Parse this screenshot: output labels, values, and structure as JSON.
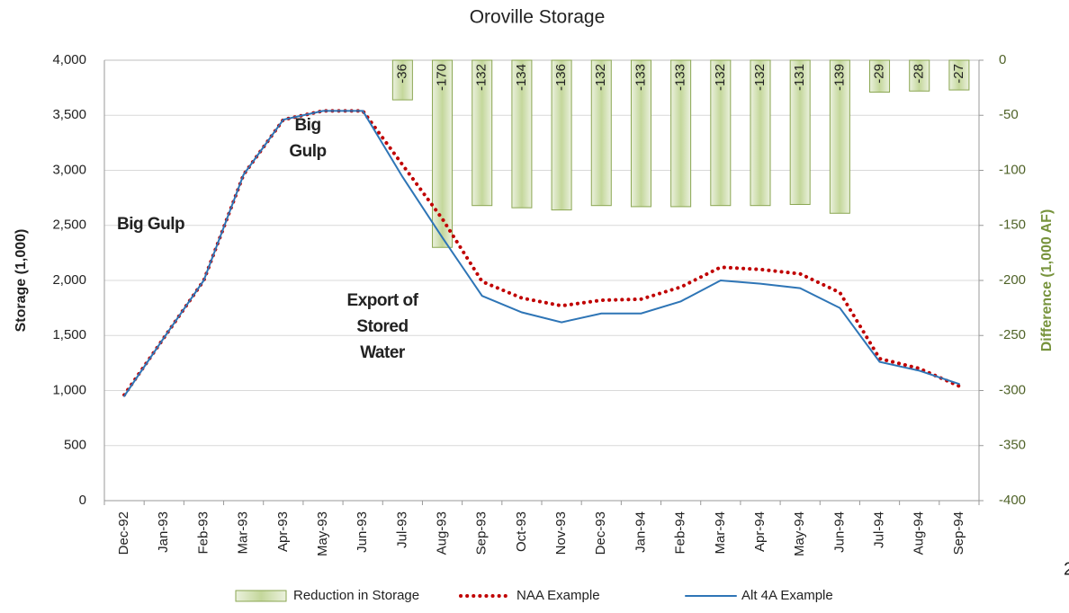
{
  "chart_data": {
    "type": "combo",
    "title": "Oroville Storage",
    "y_label": "Storage (1,000)",
    "y2_label": "Difference (1,000 AF)",
    "categories": [
      "Dec-92",
      "Jan-93",
      "Feb-93",
      "Mar-93",
      "Apr-93",
      "May-93",
      "Jun-93",
      "Jul-93",
      "Aug-93",
      "Sep-93",
      "Oct-93",
      "Nov-93",
      "Dec-93",
      "Jan-94",
      "Feb-94",
      "Mar-94",
      "Apr-94",
      "May-94",
      "Jun-94",
      "Jul-94",
      "Aug-94",
      "Sep-94"
    ],
    "series": [
      {
        "name": "Reduction in Storage",
        "type": "bar",
        "axis": "y2",
        "color": "#c4d79b",
        "values": [
          null,
          null,
          null,
          null,
          null,
          null,
          null,
          -36,
          -170,
          -132,
          -134,
          -136,
          -132,
          -133,
          -133,
          -132,
          -132,
          -131,
          -139,
          -29,
          -28,
          -27
        ]
      },
      {
        "name": "NAA Example",
        "type": "line",
        "color": "#c00000",
        "dotted": true,
        "values": [
          960,
          1480,
          2000,
          2960,
          3460,
          3540,
          3540,
          3050,
          2560,
          1990,
          1840,
          1770,
          1820,
          1830,
          1940,
          2120,
          2100,
          2060,
          1890,
          1290,
          1200,
          1040
        ]
      },
      {
        "name": "Alt 4A Example",
        "type": "line",
        "color": "#2e75b6",
        "values": [
          950,
          1480,
          2000,
          2960,
          3460,
          3540,
          3540,
          2940,
          2390,
          1860,
          1710,
          1620,
          1700,
          1700,
          1810,
          2000,
          1970,
          1930,
          1750,
          1260,
          1180,
          1060
        ]
      }
    ],
    "ylim": [
      0,
      4000
    ],
    "yticks": [
      0,
      500,
      {
        "value": 1000,
        "label": "1,000"
      },
      {
        "value": 1500,
        "label": "1,500"
      },
      {
        "value": 2000,
        "label": "2,000"
      },
      {
        "value": 2500,
        "label": "2,500"
      },
      {
        "value": 3000,
        "label": "3,000"
      },
      {
        "value": 3500,
        "label": "3,500"
      },
      {
        "value": 4000,
        "label": "4,000"
      }
    ],
    "y2lim": [
      -400,
      0
    ],
    "y2ticks": [
      -400,
      -350,
      -300,
      -250,
      -200,
      -150,
      -100,
      -50,
      0
    ],
    "grid": true,
    "legend": "bottom",
    "annotations": [
      [
        "Big Gulp"
      ],
      [
        "Big",
        "Gulp"
      ],
      [
        "Export of",
        "Stored",
        "Water"
      ]
    ]
  },
  "page_number": "2"
}
